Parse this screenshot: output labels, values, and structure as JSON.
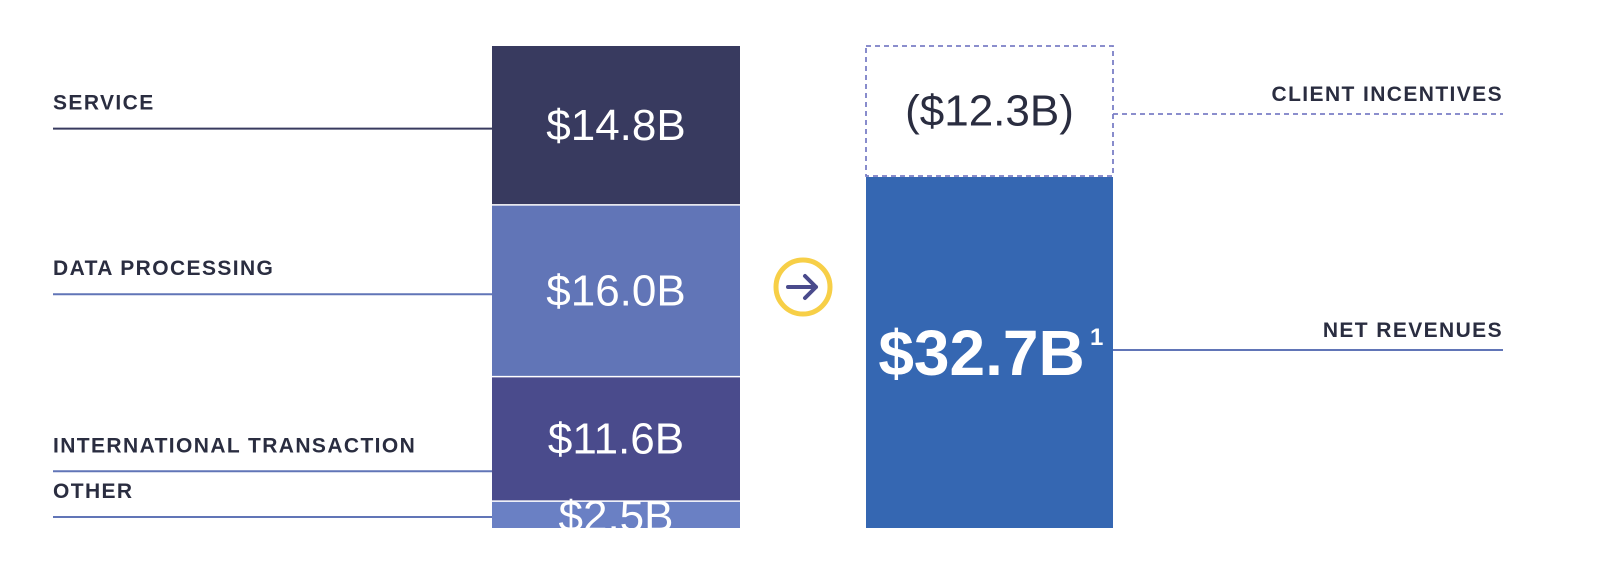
{
  "chart_data": {
    "type": "bar",
    "gross_revenue_bar": {
      "segments": [
        {
          "name": "SERVICE",
          "value": 14.8,
          "label": "$14.8B",
          "color": "#383a5f"
        },
        {
          "name": "DATA PROCESSING",
          "value": 16.0,
          "label": "$16.0B",
          "color": "#6175b7"
        },
        {
          "name": "INTERNATIONAL TRANSACTION",
          "value": 11.6,
          "label": "$11.6B",
          "color": "#4a4b8c"
        },
        {
          "name": "OTHER",
          "value": 2.5,
          "label": "$2.5B",
          "color": "#6a80c4"
        }
      ]
    },
    "net_revenue_bar": {
      "segments": [
        {
          "name": "CLIENT INCENTIVES",
          "value": -12.3,
          "label": "($12.3B)",
          "style": "dashed-outline",
          "color": "#7b7fc6"
        },
        {
          "name": "NET REVENUES",
          "value": 32.7,
          "label": "$32.7B",
          "footnote": "1",
          "color": "#3567b2"
        }
      ]
    },
    "units": "$B"
  },
  "colors": {
    "leader_dark": "#383a5f",
    "leader_mid": "#6175b7",
    "arrow_ring": "#f7cf47",
    "arrow_glyph": "#4a4b8c",
    "incentive_border": "#7b7fc6",
    "text_dark": "#2a2d40"
  },
  "icons": {
    "arrow": "arrow-right-circle-icon"
  }
}
